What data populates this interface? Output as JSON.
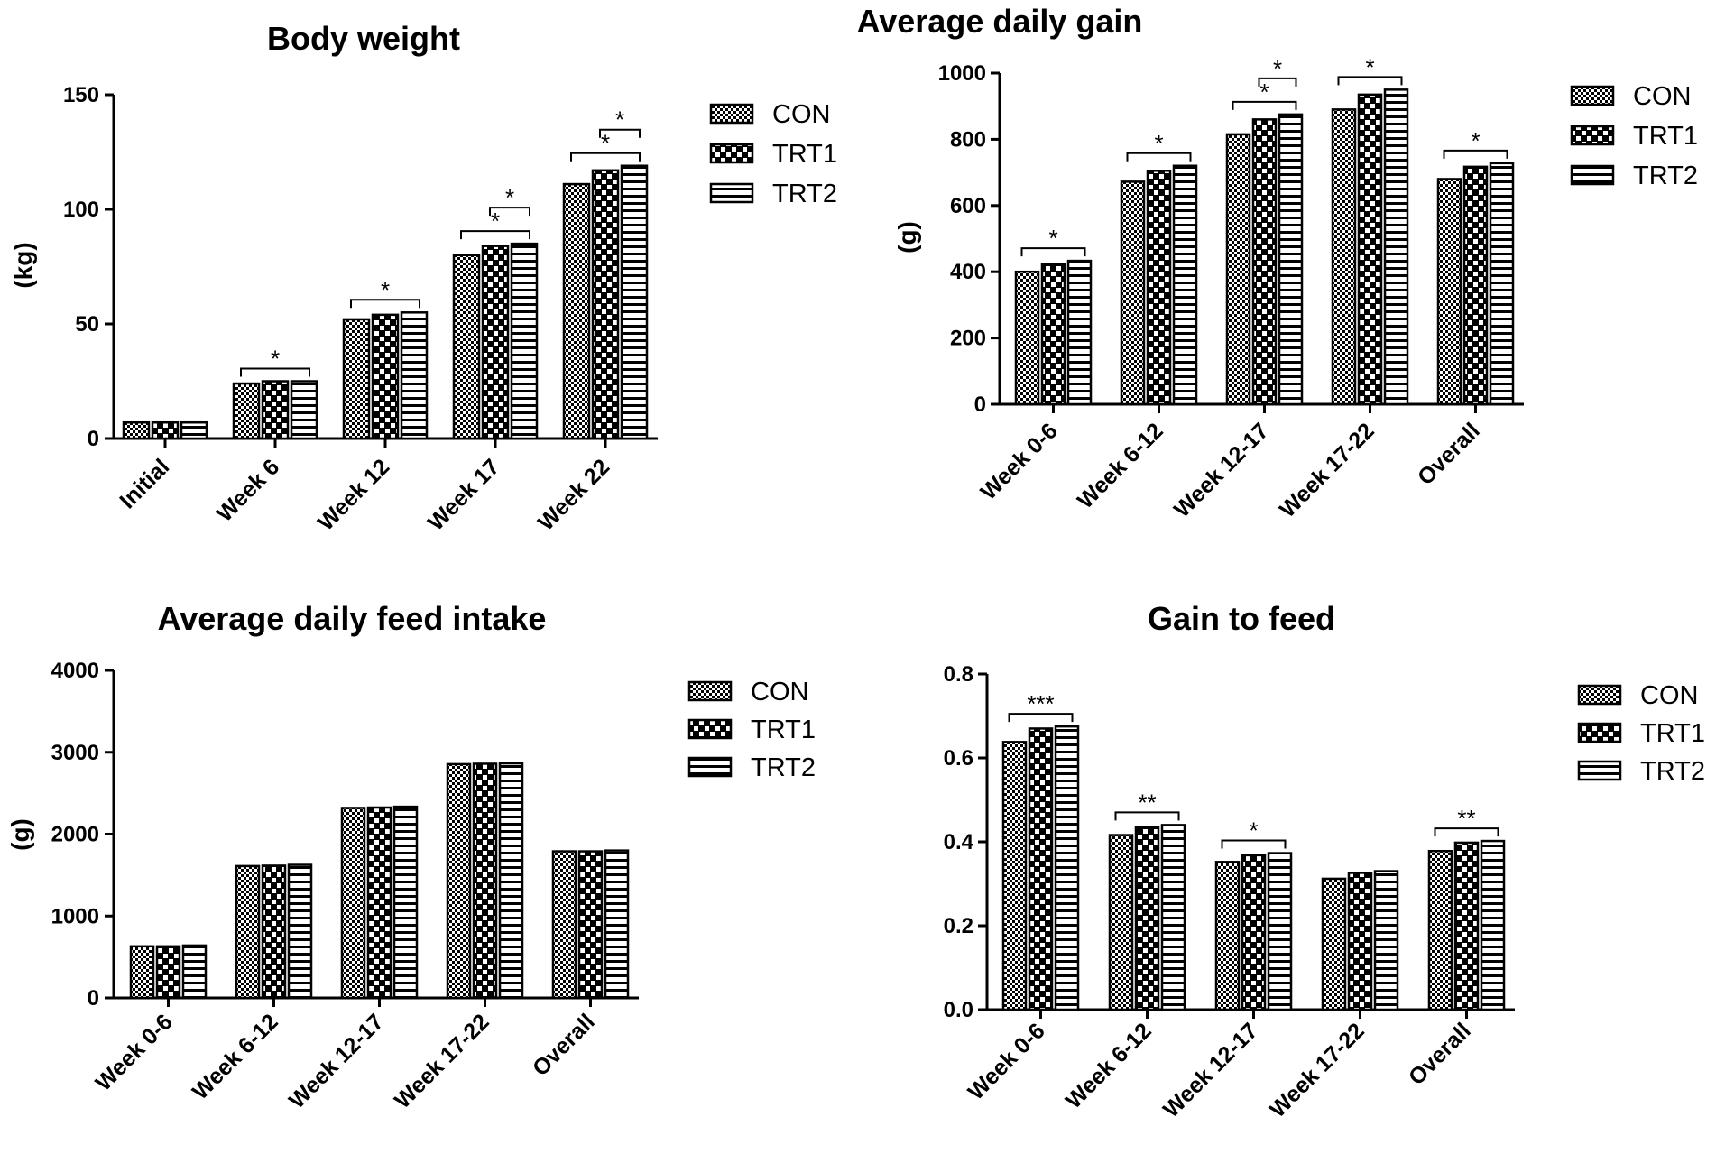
{
  "colors": {
    "ink": "#000000",
    "background": "#ffffff"
  },
  "legend_order": [
    "CON",
    "TRT1",
    "TRT2"
  ],
  "chart_data": [
    {
      "id": "bw",
      "type": "bar",
      "title": "Body weight",
      "ylabel": "(kg)",
      "xlabel": "",
      "ylim": [
        0,
        150
      ],
      "yticks": [
        0,
        50,
        100,
        150
      ],
      "categories": [
        "Initial",
        "Week 6",
        "Week 12",
        "Week 17",
        "Week 22"
      ],
      "series": [
        {
          "name": "CON",
          "pattern": "checker",
          "values": [
            7,
            24,
            52,
            80,
            111
          ]
        },
        {
          "name": "TRT1",
          "pattern": "dots",
          "values": [
            7,
            25,
            54,
            84,
            117
          ]
        },
        {
          "name": "TRT2",
          "pattern": "hlines",
          "values": [
            7,
            25,
            55,
            85,
            119
          ]
        }
      ],
      "annotations": [
        {
          "category": 1,
          "from": 0,
          "to": 2,
          "label": "*",
          "level": 0
        },
        {
          "category": 2,
          "from": 0,
          "to": 2,
          "label": "*",
          "level": 0
        },
        {
          "category": 3,
          "from": 0,
          "to": 2,
          "label": "*",
          "level": 0
        },
        {
          "category": 3,
          "from": 1,
          "to": 2,
          "label": "*",
          "level": 1
        },
        {
          "category": 4,
          "from": 0,
          "to": 2,
          "label": "*",
          "level": 0
        },
        {
          "category": 4,
          "from": 1,
          "to": 2,
          "label": "*",
          "level": 1
        }
      ]
    },
    {
      "id": "adg",
      "type": "bar",
      "title": "Average daily gain",
      "ylabel": "(g)",
      "xlabel": "",
      "ylim": [
        0,
        1000
      ],
      "yticks": [
        0,
        200,
        400,
        600,
        800,
        1000
      ],
      "categories": [
        "Week 0-6",
        "Week 6-12",
        "Week 12-17",
        "Week 17-22",
        "Overall"
      ],
      "series": [
        {
          "name": "CON",
          "pattern": "checker",
          "values": [
            400,
            672,
            815,
            890,
            680
          ]
        },
        {
          "name": "TRT1",
          "pattern": "dots",
          "values": [
            422,
            705,
            860,
            935,
            717
          ]
        },
        {
          "name": "TRT2",
          "pattern": "hlines",
          "values": [
            433,
            720,
            875,
            950,
            728
          ]
        }
      ],
      "annotations": [
        {
          "category": 0,
          "from": 0,
          "to": 2,
          "label": "*",
          "level": 0
        },
        {
          "category": 1,
          "from": 0,
          "to": 2,
          "label": "*",
          "level": 0
        },
        {
          "category": 2,
          "from": 0,
          "to": 2,
          "label": "*",
          "level": 0
        },
        {
          "category": 2,
          "from": 1,
          "to": 2,
          "label": "*",
          "level": 1
        },
        {
          "category": 3,
          "from": 0,
          "to": 2,
          "label": "*",
          "level": 0
        },
        {
          "category": 4,
          "from": 0,
          "to": 2,
          "label": "*",
          "level": 0
        }
      ]
    },
    {
      "id": "adfi",
      "type": "bar",
      "title": "Average daily feed intake",
      "ylabel": "(g)",
      "xlabel": "",
      "ylim": [
        0,
        4000
      ],
      "yticks": [
        0,
        1000,
        2000,
        3000,
        4000
      ],
      "categories": [
        "Week 0-6",
        "Week 6-12",
        "Week 12-17",
        "Week 17-22",
        "Overall"
      ],
      "series": [
        {
          "name": "CON",
          "pattern": "checker",
          "values": [
            630,
            1610,
            2320,
            2855,
            1790
          ]
        },
        {
          "name": "TRT1",
          "pattern": "dots",
          "values": [
            630,
            1615,
            2325,
            2860,
            1790
          ]
        },
        {
          "name": "TRT2",
          "pattern": "hlines",
          "values": [
            640,
            1625,
            2335,
            2865,
            1800
          ]
        }
      ],
      "annotations": []
    },
    {
      "id": "gf",
      "type": "bar",
      "title": "Gain to feed",
      "ylabel": "",
      "xlabel": "",
      "ylim": [
        0,
        0.8
      ],
      "yticks": [
        0.0,
        0.2,
        0.4,
        0.6,
        0.8
      ],
      "ytick_labels": [
        "0.0",
        "0.2",
        "0.4",
        "0.6",
        "0.8"
      ],
      "categories": [
        "Week 0-6",
        "Week 6-12",
        "Week 12-17",
        "Week 17-22",
        "Overall"
      ],
      "series": [
        {
          "name": "CON",
          "pattern": "checker",
          "values": [
            0.638,
            0.416,
            0.352,
            0.312,
            0.378
          ]
        },
        {
          "name": "TRT1",
          "pattern": "dots",
          "values": [
            0.67,
            0.435,
            0.368,
            0.326,
            0.398
          ]
        },
        {
          "name": "TRT2",
          "pattern": "hlines",
          "values": [
            0.675,
            0.44,
            0.373,
            0.33,
            0.402
          ]
        }
      ],
      "annotations": [
        {
          "category": 0,
          "from": 0,
          "to": 2,
          "label": "***",
          "level": 0
        },
        {
          "category": 1,
          "from": 0,
          "to": 2,
          "label": "**",
          "level": 0
        },
        {
          "category": 2,
          "from": 0,
          "to": 2,
          "label": "*",
          "level": 0
        },
        {
          "category": 4,
          "from": 0,
          "to": 2,
          "label": "**",
          "level": 0
        }
      ]
    }
  ]
}
